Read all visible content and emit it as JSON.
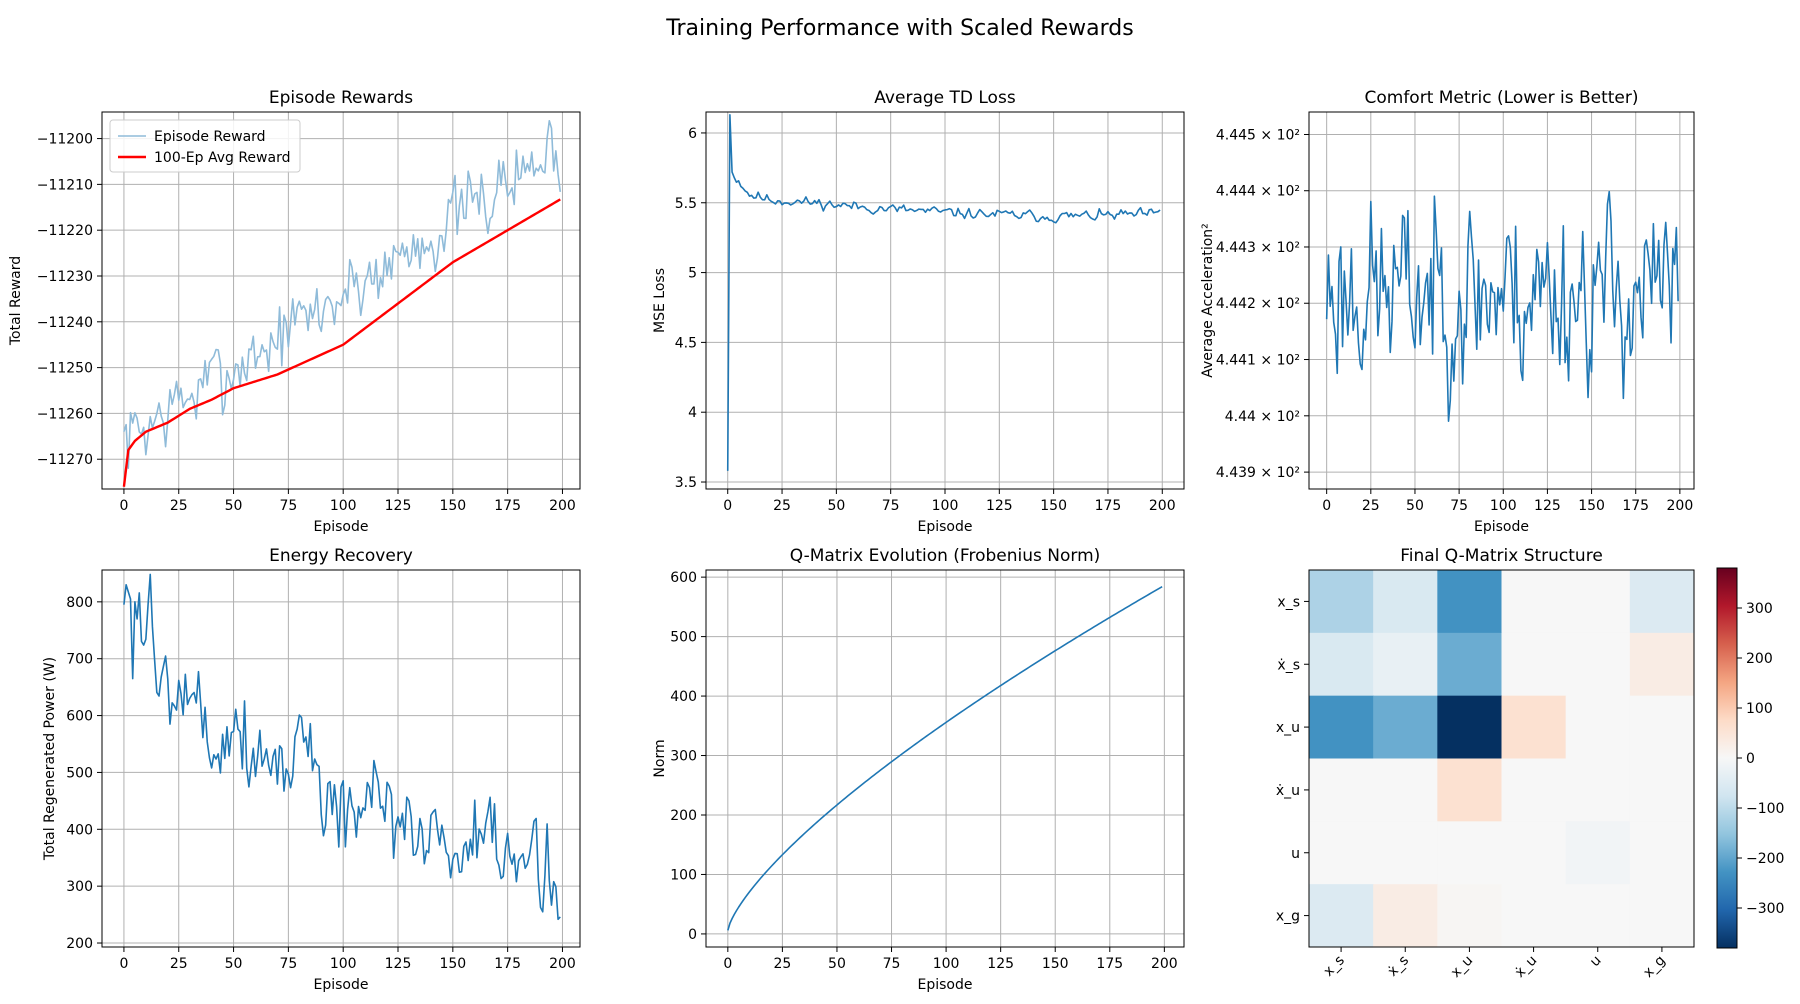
{
  "figure": {
    "suptitle": "Training Performance with Scaled Rewards"
  },
  "colors": {
    "line": "#1f77b4",
    "avg": "#ff0000",
    "raw": "#8fbbd9",
    "grid": "#b0b0b0"
  },
  "chart_data": [
    {
      "id": "rewards",
      "type": "line",
      "title": "Episode Rewards",
      "xlabel": "Episode",
      "ylabel": "Total Reward",
      "xlim": [
        -10,
        208
      ],
      "ylim": [
        -11276.5,
        -11194.2
      ],
      "xticks": [
        0,
        25,
        50,
        75,
        100,
        125,
        150,
        175,
        200
      ],
      "yticks": [
        -11270,
        -11260,
        -11250,
        -11240,
        -11230,
        -11220,
        -11210,
        -11200
      ],
      "grid": true,
      "legend": {
        "position": "top-left"
      },
      "series": [
        {
          "name": "Episode Reward",
          "style": "raw",
          "start": -11266,
          "end": -11202,
          "noise": 3.8,
          "seed": 7,
          "curve": 1.0
        },
        {
          "name": "100-Ep Avg Reward",
          "style": "avg",
          "points": [
            [
              0,
              -11276
            ],
            [
              2,
              -11268
            ],
            [
              5,
              -11266
            ],
            [
              10,
              -11264
            ],
            [
              20,
              -11262
            ],
            [
              30,
              -11259
            ],
            [
              40,
              -11257
            ],
            [
              50,
              -11254.5
            ],
            [
              70,
              -11251.5
            ],
            [
              100,
              -11245
            ],
            [
              125,
              -11236
            ],
            [
              150,
              -11227
            ],
            [
              175,
              -11220
            ],
            [
              200,
              -11213
            ]
          ]
        }
      ]
    },
    {
      "id": "tdloss",
      "type": "line",
      "title": "Average TD Loss",
      "xlabel": "Episode",
      "ylabel": "MSE Loss",
      "xlim": [
        -10,
        210
      ],
      "ylim": [
        3.45,
        6.15
      ],
      "xticks": [
        0,
        25,
        50,
        75,
        100,
        125,
        150,
        175,
        200
      ],
      "yticks": [
        3.5,
        4.0,
        4.5,
        5.0,
        5.5,
        6.0
      ],
      "grid": true,
      "series": [
        {
          "name": "",
          "style": "line",
          "points": [
            [
              0,
              3.58
            ],
            [
              1,
              6.13
            ],
            [
              2,
              5.72
            ],
            [
              3,
              5.68
            ],
            [
              5,
              5.66
            ],
            [
              10,
              5.56
            ],
            [
              20,
              5.52
            ],
            [
              40,
              5.5
            ],
            [
              60,
              5.47
            ],
            [
              100,
              5.43
            ],
            [
              150,
              5.4
            ],
            [
              200,
              5.42
            ]
          ],
          "noise": 0.018,
          "seed": 11,
          "noiseFrom": 4
        }
      ]
    },
    {
      "id": "comfort",
      "type": "line",
      "title": "Comfort Metric (Lower is Better)",
      "xlabel": "Episode",
      "ylabel": "Average Acceleration²",
      "xlim": [
        -10,
        208
      ],
      "ylim": [
        443.87,
        444.54
      ],
      "xticks": [
        0,
        25,
        50,
        75,
        100,
        125,
        150,
        175,
        200
      ],
      "yticks": [
        443.9,
        444.0,
        444.1,
        444.2,
        444.3,
        444.4,
        444.5
      ],
      "ytick_labels": [
        "4.439 × 10²",
        "4.44 × 10²",
        "4.441 × 10²",
        "4.442 × 10²",
        "4.443 × 10²",
        "4.444 × 10²",
        "4.445 × 10²"
      ],
      "y_scale": "log",
      "grid": true,
      "series": [
        {
          "name": "",
          "style": "line",
          "start": 444.22,
          "end": 444.22,
          "noise": 0.075,
          "seed": 23,
          "clip": [
            443.9,
            444.52
          ]
        }
      ]
    },
    {
      "id": "energy",
      "type": "line",
      "title": "Energy Recovery",
      "xlabel": "Episode",
      "ylabel": "Total Regenerated Power (W)",
      "xlim": [
        -10,
        208
      ],
      "ylim": [
        193,
        856
      ],
      "xticks": [
        0,
        25,
        50,
        75,
        100,
        125,
        150,
        175,
        200
      ],
      "yticks": [
        200,
        300,
        400,
        500,
        600,
        700,
        800
      ],
      "grid": true,
      "series": [
        {
          "name": "",
          "style": "line",
          "points": [
            [
              0,
              795
            ],
            [
              1,
              830
            ],
            [
              3,
              805
            ],
            [
              4,
              665
            ],
            [
              5,
              800
            ],
            [
              10,
              770
            ],
            [
              12,
              810
            ],
            [
              14,
              640
            ],
            [
              20,
              690
            ],
            [
              25,
              680
            ],
            [
              30,
              640
            ],
            [
              40,
              560
            ],
            [
              50,
              600
            ],
            [
              60,
              530
            ],
            [
              75,
              520
            ],
            [
              80,
              560
            ],
            [
              100,
              430
            ],
            [
              125,
              420
            ],
            [
              150,
              370
            ],
            [
              175,
              340
            ],
            [
              200,
              330
            ]
          ],
          "noise": 42,
          "seed": 5,
          "noiseFrom": 6
        }
      ]
    },
    {
      "id": "qnorm",
      "type": "line",
      "title": "Q-Matrix Evolution (Frobenius Norm)",
      "xlabel": "Episode",
      "ylabel": "Norm",
      "xlim": [
        -10,
        209
      ],
      "ylim": [
        -22,
        612
      ],
      "xticks": [
        0,
        25,
        50,
        75,
        100,
        125,
        150,
        175,
        200
      ],
      "yticks": [
        0,
        100,
        200,
        300,
        400,
        500,
        600
      ],
      "grid": true,
      "series": [
        {
          "name": "",
          "style": "line",
          "formula": "power",
          "a": 6,
          "b": 578,
          "p": 0.73,
          "xmax": 199
        }
      ]
    },
    {
      "id": "qmatrix",
      "type": "heatmap",
      "title": "Final Q-Matrix Structure",
      "row_labels": [
        "x_s",
        "ẋ_s",
        "x_u",
        "ẋ_u",
        "u",
        "x_g"
      ],
      "col_labels": [
        "x_s",
        "ẋ_s",
        "x_u",
        "ẋ_u",
        "u",
        "x_g"
      ],
      "values": [
        [
          -120,
          -60,
          -230,
          0,
          0,
          -55
        ],
        [
          -60,
          -30,
          -190,
          0,
          0,
          30
        ],
        [
          -230,
          -190,
          -380,
          60,
          0,
          0
        ],
        [
          0,
          0,
          60,
          0,
          0,
          0
        ],
        [
          0,
          0,
          0,
          0,
          -12,
          0
        ],
        [
          -55,
          30,
          6,
          0,
          0,
          0
        ]
      ],
      "vmin": -380,
      "vmax": 380,
      "colormap": "RdBu_r",
      "colorbar_ticks": [
        -300,
        -200,
        -100,
        0,
        100,
        200,
        300
      ]
    }
  ]
}
